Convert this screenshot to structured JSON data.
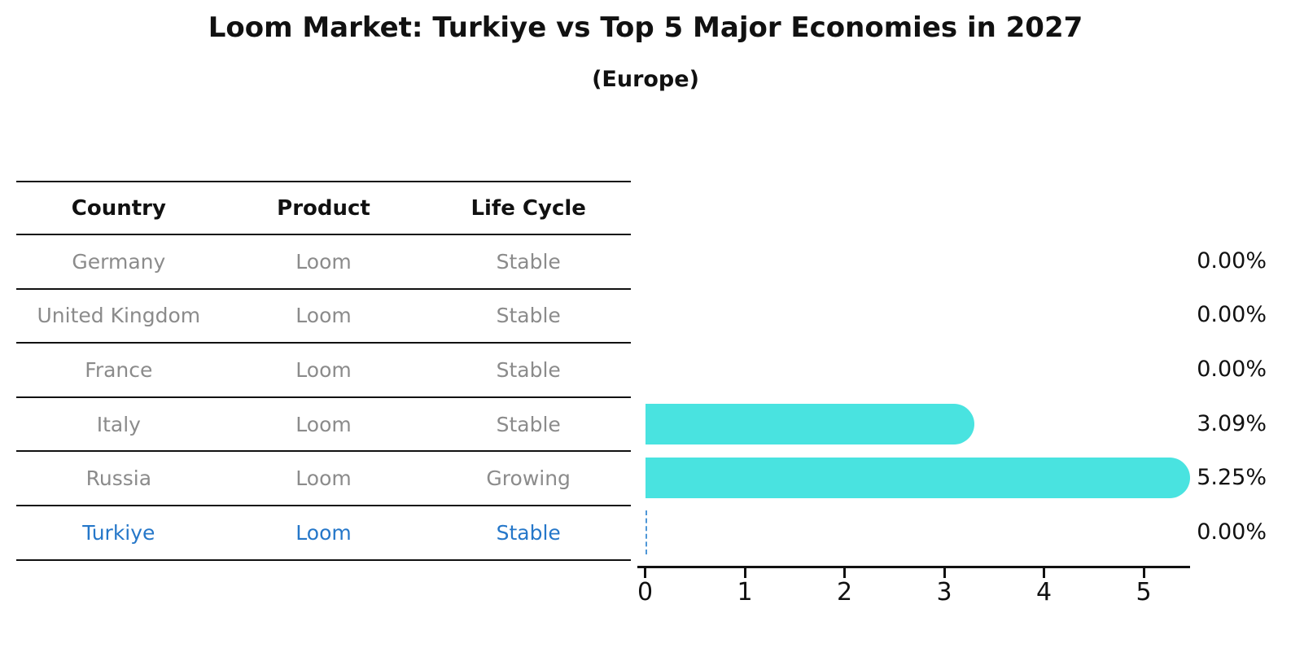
{
  "title": "Loom Market: Turkiye vs Top 5 Major Economies in 2027",
  "subtitle": "(Europe)",
  "table": {
    "headers": [
      "Country",
      "Product",
      "Life Cycle"
    ],
    "rows": [
      {
        "country": "Germany",
        "product": "Loom",
        "life_cycle": "Stable"
      },
      {
        "country": "United Kingdom",
        "product": "Loom",
        "life_cycle": "Stable"
      },
      {
        "country": "France",
        "product": "Loom",
        "life_cycle": "Stable"
      },
      {
        "country": "Italy",
        "product": "Loom",
        "life_cycle": "Stable"
      },
      {
        "country": "Russia",
        "product": "Loom",
        "life_cycle": "Growing"
      },
      {
        "country": "Turkiye",
        "product": "Loom",
        "life_cycle": "Stable"
      }
    ]
  },
  "chart_data": {
    "type": "bar",
    "orientation": "horizontal",
    "title": "Loom Market: Turkiye vs Top 5 Major Economies in 2027",
    "subtitle": "(Europe)",
    "categories": [
      "Germany",
      "United Kingdom",
      "France",
      "Italy",
      "Russia",
      "Turkiye"
    ],
    "values": [
      0,
      0,
      0,
      3.09,
      5.25,
      0
    ],
    "value_labels": [
      "0.00%",
      "0.00%",
      "0.00%",
      "3.09%",
      "5.25%",
      "0.00%"
    ],
    "xlabel": "",
    "ylabel": "",
    "xlim": [
      0,
      5.5
    ],
    "xticks": [
      0,
      1,
      2,
      3,
      4,
      5
    ],
    "grid": false,
    "legend": false,
    "highlight_country": "Turkiye",
    "zero_marker": "dashed-line-at-zero",
    "bar_color": "#49e3e0",
    "highlight_text_color": "#2577c9",
    "dashed_line_color": "#4f97d7"
  },
  "colors": {
    "background": "#ffffff",
    "bar": "#49e3e0",
    "highlight_text": "#2577c9",
    "row_text": "#8b8b8b",
    "header_text": "#111111",
    "axis": "#111111",
    "dashed_zero_line": "#4f97d7"
  }
}
